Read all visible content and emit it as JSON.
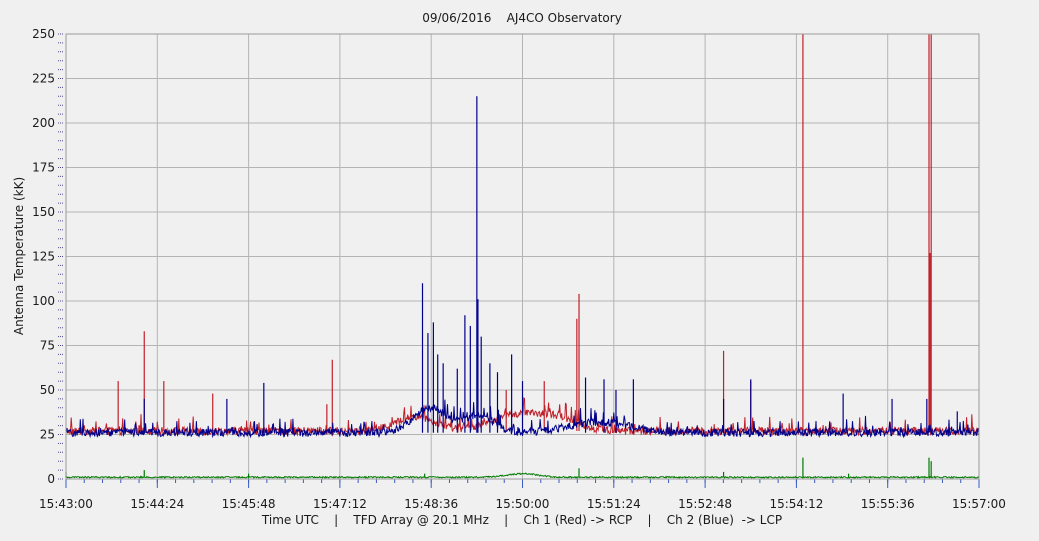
{
  "chart_data": {
    "type": "line",
    "title": "09/06/2016    AJ4CO Observatory",
    "xlabel": "Time UTC    |    TFD Array @ 20.1 MHz    |    Ch 1 (Red) -> RCP    |    Ch 2 (Blue)  -> LCP",
    "ylabel": "Antenna Temperature (kK)",
    "ylim": [
      0,
      250
    ],
    "y_ticks": [
      0,
      25,
      50,
      75,
      100,
      125,
      150,
      175,
      200,
      225,
      250
    ],
    "x_tick_labels": [
      "15:43:00",
      "15:44:24",
      "15:45:48",
      "15:47:12",
      "15:48:36",
      "15:50:00",
      "15:51:24",
      "15:52:48",
      "15:54:12",
      "15:55:36",
      "15:57:00"
    ],
    "x_range": [
      "15:43:00",
      "15:57:00"
    ],
    "grid": true,
    "series": [
      {
        "name": "Ch 1 (Red) -> RCP",
        "color": "#c0202a",
        "baseline": 27,
        "bumps": [
          {
            "t": "15:48:22",
            "h": 8,
            "w": 25
          },
          {
            "t": "15:49:55",
            "h": 9,
            "w": 35
          },
          {
            "t": "15:50:35",
            "h": 6,
            "w": 25
          }
        ],
        "spikes": [
          {
            "t": "15:43:48",
            "y": 55
          },
          {
            "t": "15:44:12",
            "y": 83
          },
          {
            "t": "15:44:30",
            "y": 55
          },
          {
            "t": "15:45:15",
            "y": 48
          },
          {
            "t": "15:47:05",
            "y": 67
          },
          {
            "t": "15:47:00",
            "y": 42
          },
          {
            "t": "15:49:45",
            "y": 50
          },
          {
            "t": "15:50:20",
            "y": 55
          },
          {
            "t": "15:50:52",
            "y": 104
          },
          {
            "t": "15:50:50",
            "y": 90
          },
          {
            "t": "15:53:05",
            "y": 72
          },
          {
            "t": "15:53:30",
            "y": 55
          },
          {
            "t": "15:54:18",
            "y": 250
          },
          {
            "t": "15:56:14",
            "y": 250
          },
          {
            "t": "15:56:15",
            "y": 127
          },
          {
            "t": "15:56:16",
            "y": 250
          }
        ]
      },
      {
        "name": "Ch 2 (Blue)  -> LCP",
        "color": "#00008b",
        "baseline": 26,
        "bumps": [
          {
            "t": "15:48:35",
            "h": 14,
            "w": 22
          },
          {
            "t": "15:49:20",
            "h": 10,
            "w": 18
          },
          {
            "t": "15:51:10",
            "h": 6,
            "w": 40
          }
        ],
        "spikes": [
          {
            "t": "15:44:12",
            "y": 45
          },
          {
            "t": "15:45:28",
            "y": 45
          },
          {
            "t": "15:46:02",
            "y": 54
          },
          {
            "t": "15:48:28",
            "y": 110
          },
          {
            "t": "15:48:33",
            "y": 82
          },
          {
            "t": "15:48:38",
            "y": 88
          },
          {
            "t": "15:48:42",
            "y": 70
          },
          {
            "t": "15:48:47",
            "y": 65
          },
          {
            "t": "15:49:00",
            "y": 62
          },
          {
            "t": "15:49:07",
            "y": 92
          },
          {
            "t": "15:49:12",
            "y": 86
          },
          {
            "t": "15:49:18",
            "y": 215
          },
          {
            "t": "15:49:19",
            "y": 101
          },
          {
            "t": "15:49:22",
            "y": 80
          },
          {
            "t": "15:49:30",
            "y": 65
          },
          {
            "t": "15:49:37",
            "y": 60
          },
          {
            "t": "15:49:50",
            "y": 70
          },
          {
            "t": "15:50:00",
            "y": 55
          },
          {
            "t": "15:50:58",
            "y": 57
          },
          {
            "t": "15:51:15",
            "y": 56
          },
          {
            "t": "15:51:26",
            "y": 50
          },
          {
            "t": "15:51:42",
            "y": 56
          },
          {
            "t": "15:53:30",
            "y": 56
          },
          {
            "t": "15:53:05",
            "y": 45
          },
          {
            "t": "15:54:55",
            "y": 48
          },
          {
            "t": "15:55:40",
            "y": 45
          },
          {
            "t": "15:56:12",
            "y": 45
          },
          {
            "t": "15:56:40",
            "y": 38
          }
        ]
      },
      {
        "name": "",
        "color": "#007a00",
        "baseline": 1,
        "bumps": [
          {
            "t": "15:50:00",
            "h": 2,
            "w": 20
          }
        ],
        "spikes": [
          {
            "t": "15:43:00",
            "y": 4
          },
          {
            "t": "15:44:12",
            "y": 5
          },
          {
            "t": "15:45:48",
            "y": 3
          },
          {
            "t": "15:48:30",
            "y": 3
          },
          {
            "t": "15:50:52",
            "y": 6
          },
          {
            "t": "15:53:05",
            "y": 4
          },
          {
            "t": "15:54:18",
            "y": 12
          },
          {
            "t": "15:55:00",
            "y": 3
          },
          {
            "t": "15:56:14",
            "y": 12
          },
          {
            "t": "15:56:16",
            "y": 10
          }
        ]
      }
    ]
  }
}
